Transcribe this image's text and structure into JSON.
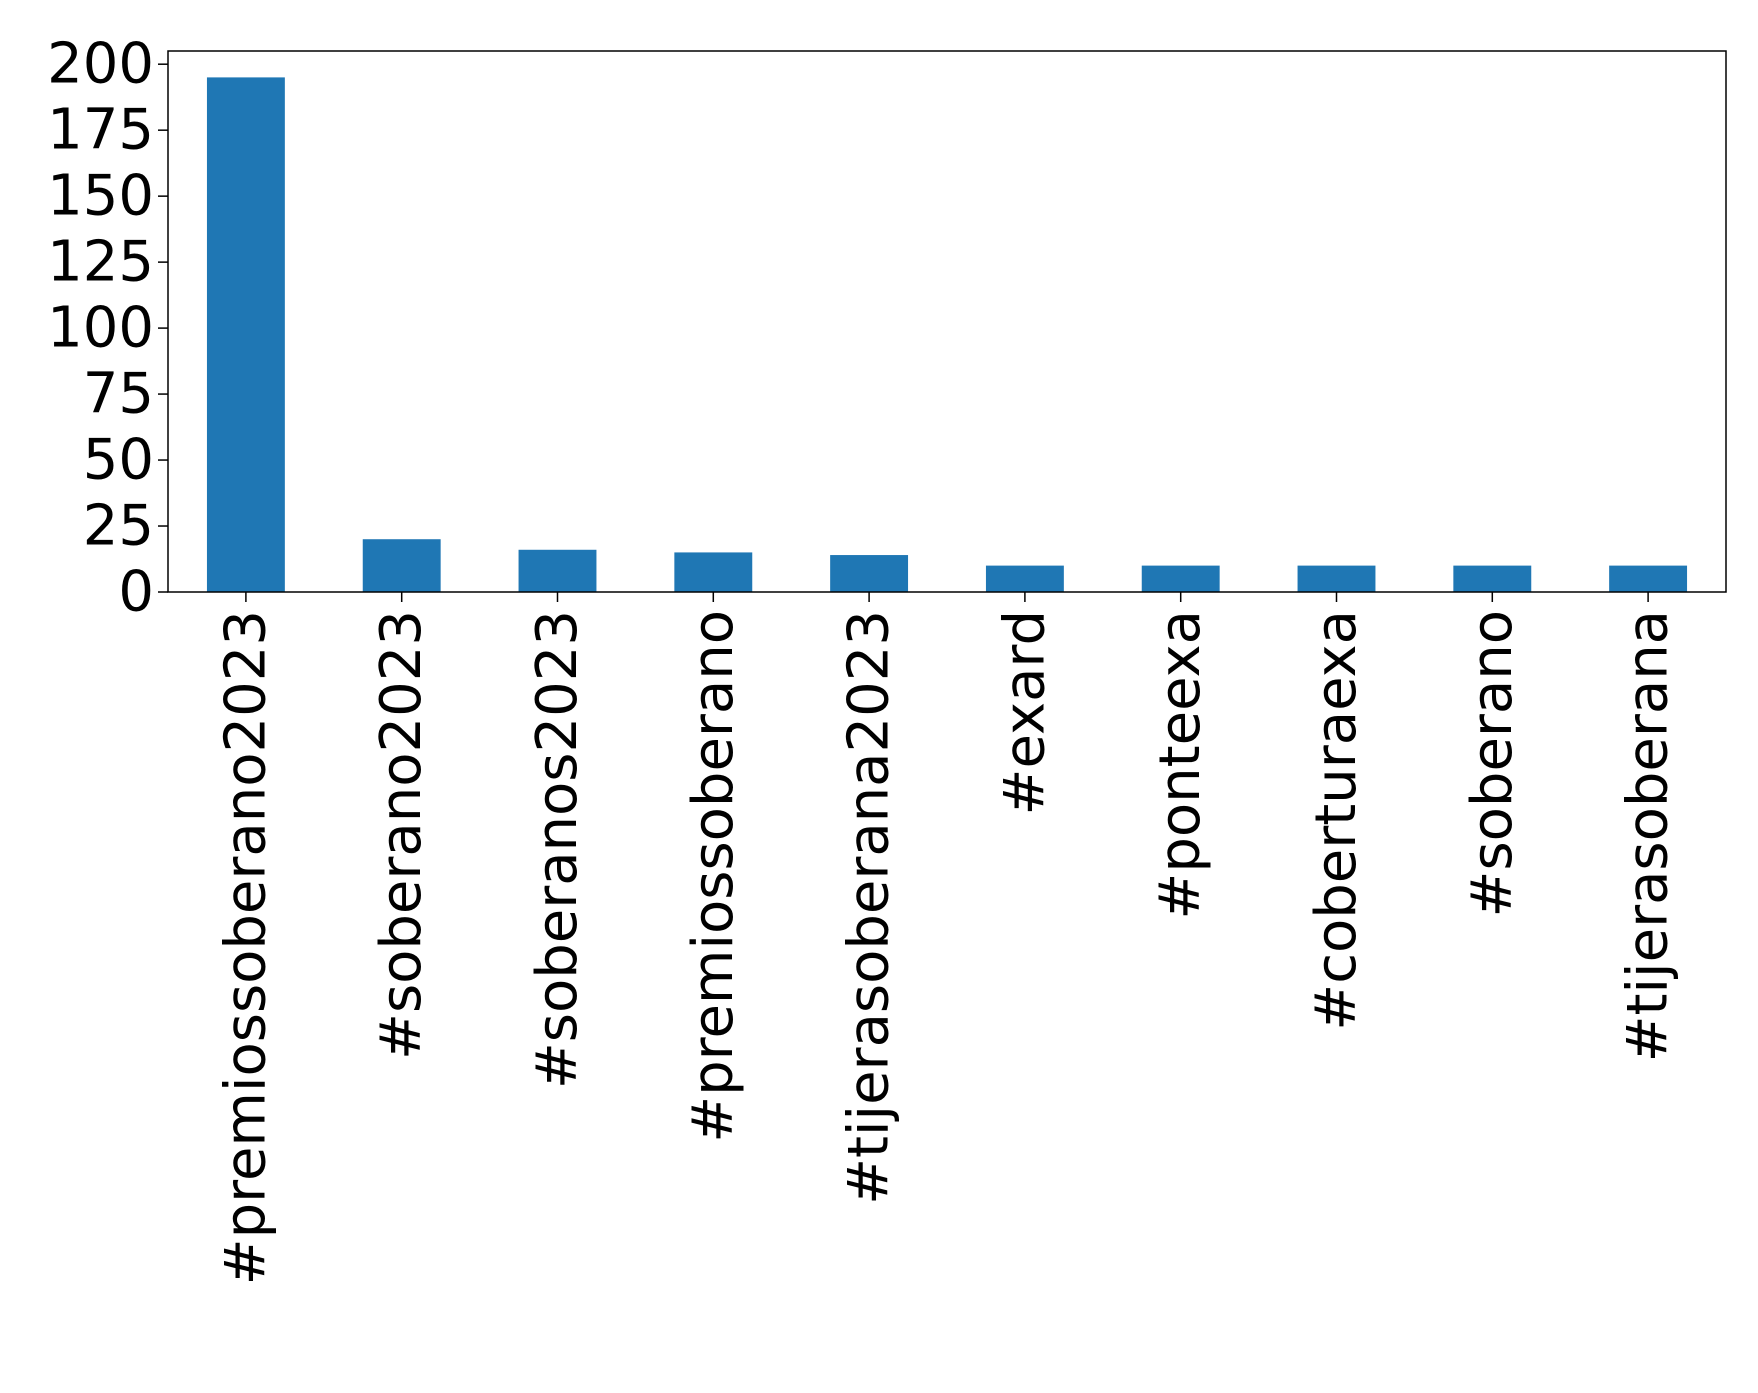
{
  "chart_data": {
    "type": "bar",
    "categories": [
      "#premiossoberano2023",
      "#soberano2023",
      "#soberanos2023",
      "#premiossoberano",
      "#tijerasoberana2023",
      "#exard",
      "#ponteexa",
      "#coberturaexa",
      "#soberano",
      "#tijerasoberana"
    ],
    "values": [
      195,
      20,
      16,
      15,
      14,
      10,
      10,
      10,
      10,
      10
    ],
    "ylim": [
      0,
      205
    ],
    "yticks": [
      "0",
      "25",
      "50",
      "75",
      "100",
      "125",
      "150",
      "175",
      "200"
    ],
    "bar_color": "#1f77b4",
    "grid": false,
    "legend": "none"
  }
}
